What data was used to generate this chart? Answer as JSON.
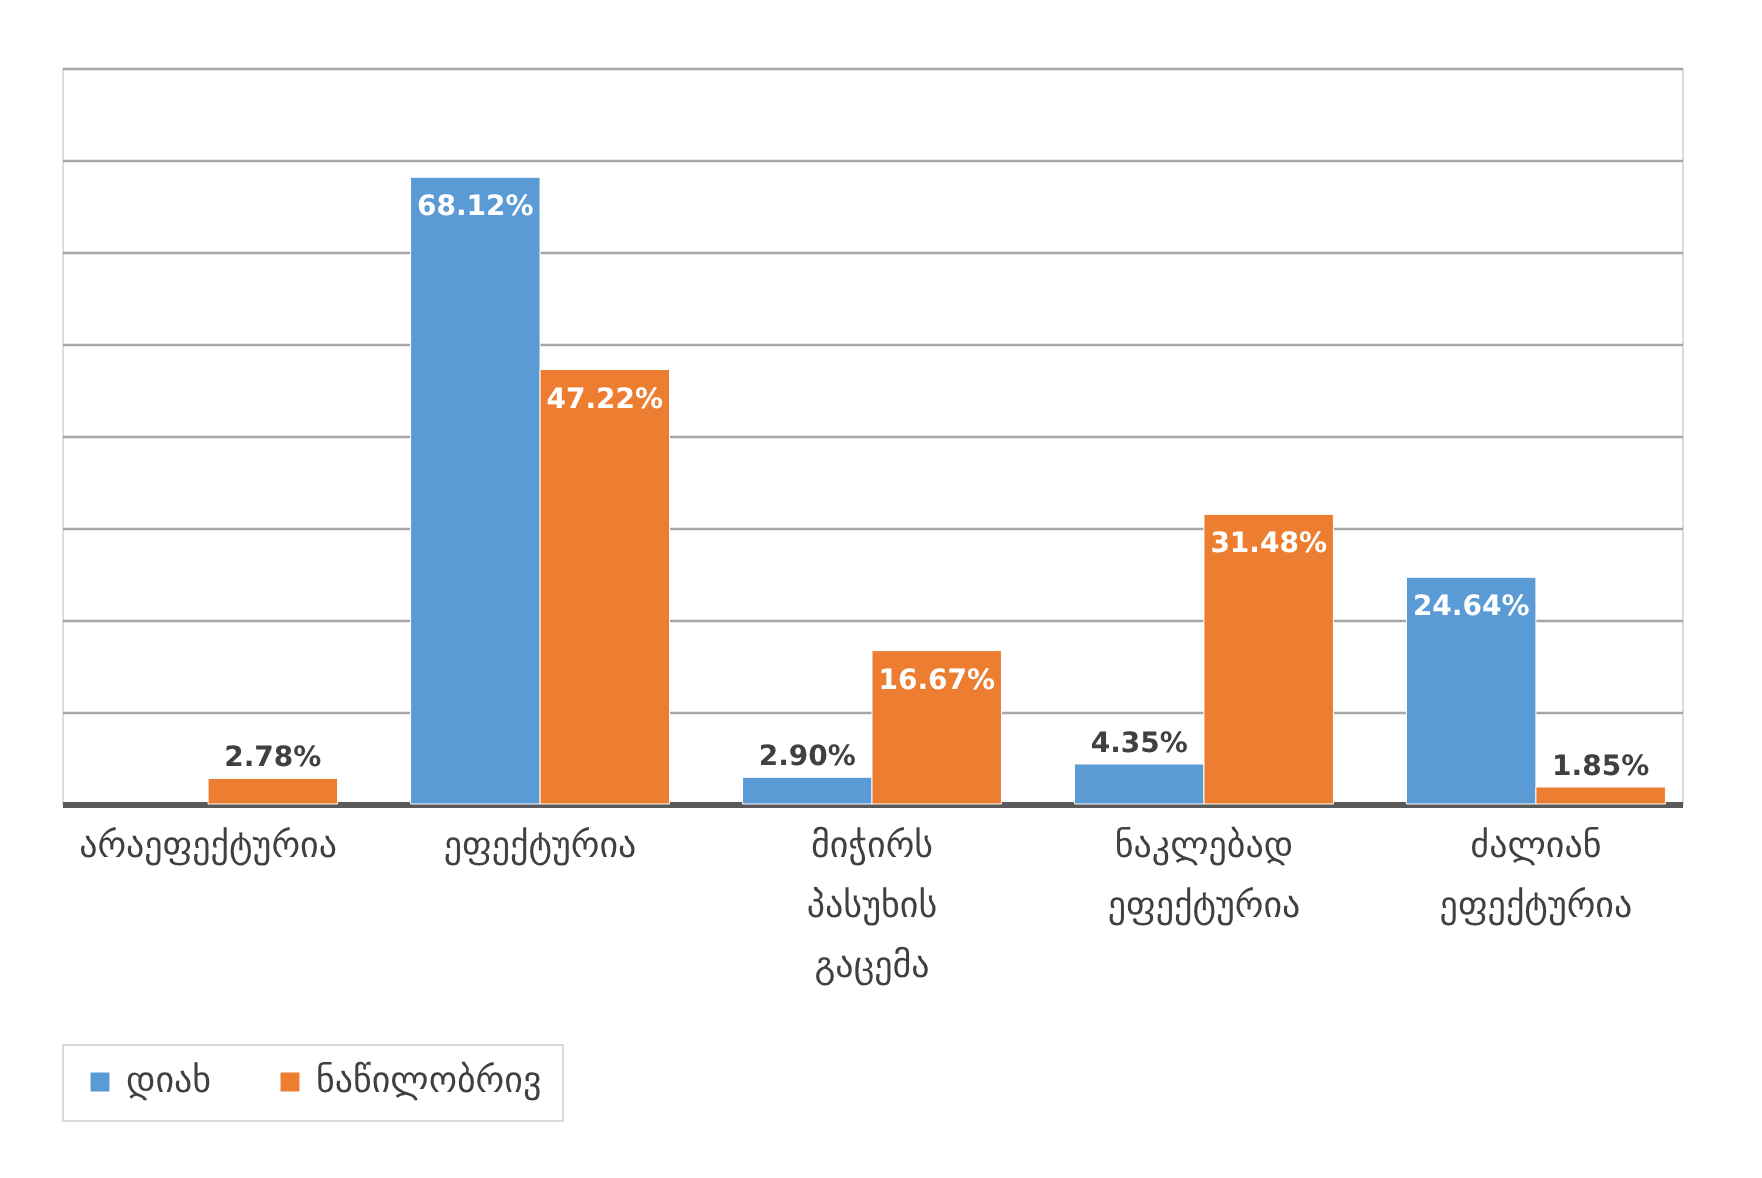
{
  "chart_data": {
    "type": "bar",
    "categories": [
      "არაეფექტურია",
      "ეფექტურია",
      "მიჭირს პასუხის გაცემა",
      "ნაკლებად ეფექტურია",
      "ძალიან ეფექტურია"
    ],
    "series": [
      {
        "name": "დიახ",
        "color": "#5b9bd5",
        "values": [
          null,
          68.12,
          2.9,
          4.35,
          24.64
        ],
        "value_labels": [
          null,
          "68.12%",
          "2.90%",
          "4.35%",
          "24.64%"
        ]
      },
      {
        "name": "ნაწილობრივ",
        "color": "#ed7d31",
        "values": [
          2.78,
          47.22,
          16.67,
          31.48,
          1.85
        ],
        "value_labels": [
          "2.78%",
          "47.22%",
          "16.67%",
          "31.48%",
          "1.85%"
        ]
      }
    ],
    "ylim": [
      0,
      80
    ],
    "yticks": [
      {
        "value": 0,
        "label": null
      },
      {
        "value": 10,
        "label": null
      },
      {
        "value": 20,
        "label": null
      },
      {
        "value": 30,
        "label": null
      },
      {
        "value": 40,
        "label": null
      },
      {
        "value": 50,
        "label": null
      },
      {
        "value": 60,
        "label": null
      },
      {
        "value": 70,
        "label": null
      },
      {
        "value": 80,
        "label": null
      }
    ],
    "grid": "y",
    "legend": "bottom",
    "tick_labels": "x"
  }
}
